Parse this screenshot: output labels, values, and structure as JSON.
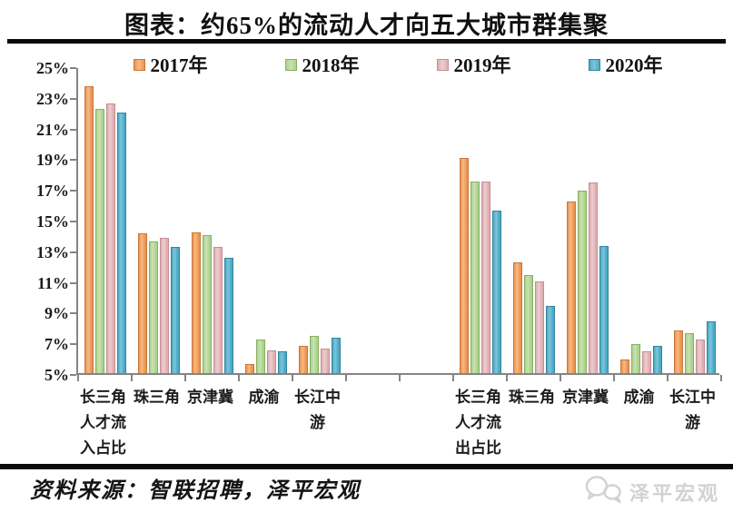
{
  "title": "图表：约65%的流动人才向五大城市群集聚",
  "source_text": "资料来源：智联招聘，泽平宏观",
  "watermark": {
    "label": "泽平宏观",
    "icon": "wechat-bubbles-icon",
    "color": "#d2d2d2"
  },
  "chart_data": {
    "type": "bar",
    "title": "图表：约65%的流动人才向五大城市群集聚",
    "legend_position": "top",
    "grid": false,
    "y_axis": {
      "min": 5,
      "max": 25,
      "step": 2,
      "unit": "%",
      "tick_labels": [
        "25%",
        "23%",
        "21%",
        "19%",
        "17%",
        "15%",
        "13%",
        "11%",
        "9%",
        "7%",
        "5%"
      ]
    },
    "series": [
      {
        "name": "2017年",
        "color": "#EC9350",
        "light_color": "#F5BA85",
        "border_color": "#C9773B"
      },
      {
        "name": "2018年",
        "color": "#ABD08D",
        "light_color": "#C9E3B0",
        "border_color": "#85B163"
      },
      {
        "name": "2019年",
        "color": "#DFAEB1",
        "light_color": "#EDCDCF",
        "border_color": "#C28F93"
      },
      {
        "name": "2020年",
        "color": "#4AA9C5",
        "light_color": "#7DC5DA",
        "border_color": "#35839C"
      }
    ],
    "groups": [
      {
        "category": "长三角人才流入占比",
        "values": [
          23.7,
          22.2,
          22.6,
          22.0
        ]
      },
      {
        "category": "珠三角",
        "values": [
          14.1,
          13.6,
          13.8,
          13.2
        ]
      },
      {
        "category": "京津冀",
        "values": [
          14.2,
          14.0,
          13.2,
          12.5
        ]
      },
      {
        "category": "成渝",
        "values": [
          5.6,
          7.2,
          6.5,
          6.4
        ]
      },
      {
        "category": "长江中游",
        "values": [
          6.8,
          7.4,
          6.6,
          7.3
        ]
      },
      {
        "category": "长三角人才流出占比",
        "values": [
          19.0,
          17.5,
          17.5,
          15.6
        ]
      },
      {
        "category": "珠三角",
        "values": [
          12.2,
          11.4,
          11.0,
          9.4
        ]
      },
      {
        "category": "京津冀",
        "values": [
          16.2,
          16.9,
          17.4,
          13.3
        ]
      },
      {
        "category": "成渝",
        "values": [
          5.9,
          6.9,
          6.4,
          6.8
        ]
      },
      {
        "category": "长江中游",
        "values": [
          7.8,
          7.6,
          7.2,
          8.4
        ]
      }
    ]
  }
}
